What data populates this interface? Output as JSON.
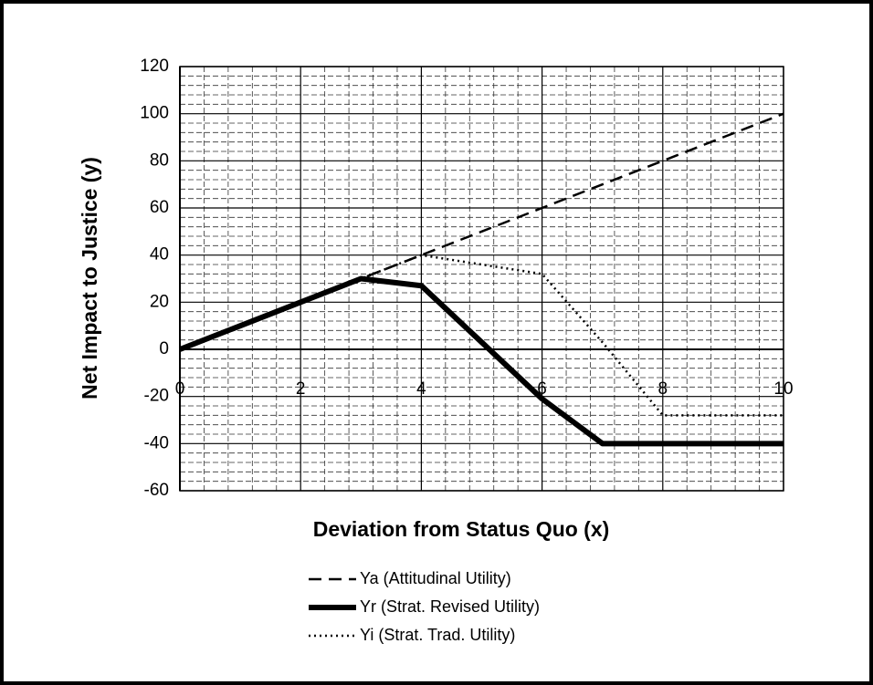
{
  "chart_data": {
    "type": "line",
    "x_label": "Deviation from Status Quo (x)",
    "y_label": "Net Impact to Justice (y)",
    "x": [
      0,
      1,
      2,
      3,
      4,
      5,
      6,
      7,
      8,
      9,
      10
    ],
    "series": [
      {
        "name": "Ya (Attitudinal Utility)",
        "color": "#000000",
        "style": "dashed",
        "values": [
          0,
          10,
          20,
          30,
          40,
          50,
          60,
          70,
          80,
          90,
          100
        ]
      },
      {
        "name": "Yr (Strat. Revised Utility)",
        "color": "#000000",
        "style": "solid",
        "values": [
          0,
          10,
          20,
          30,
          27,
          3,
          -21,
          -40,
          -40,
          -40,
          -40
        ]
      },
      {
        "name": "Yi (Strat. Trad. Utility)",
        "color": "#000000",
        "style": "dotted",
        "values": [
          0,
          10,
          20,
          30,
          40,
          36,
          32,
          3,
          -28,
          -28,
          -28
        ]
      }
    ],
    "xlim": [
      0,
      10
    ],
    "xticks": [
      0,
      2,
      4,
      6,
      8,
      10
    ],
    "ylim": [
      -60,
      120
    ],
    "yticks": [
      -60,
      -40,
      -20,
      0,
      20,
      40,
      60,
      80,
      100,
      120
    ],
    "grid": true,
    "minor_grid": true,
    "minor_divisions": 5,
    "legend": "bottom"
  }
}
